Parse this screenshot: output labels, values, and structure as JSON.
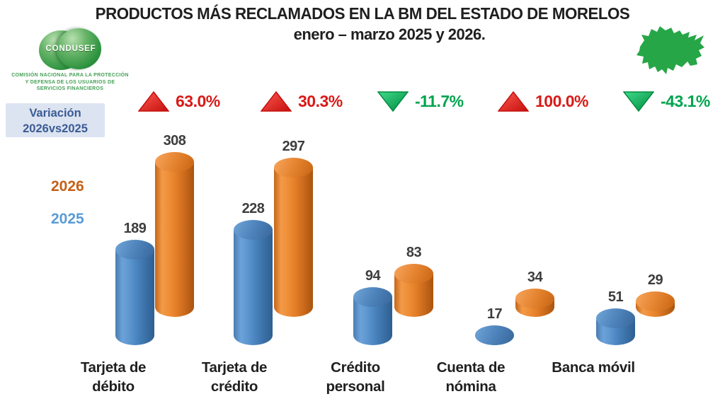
{
  "title": "PRODUCTOS MÁS RECLAMADOS EN LA BM DEL ESTADO DE MORELOS",
  "subtitle": "enero – marzo 2025 y 2026.",
  "logo": {
    "text": "CONDUSEF",
    "caption_line1": "COMISIÓN NACIONAL PARA LA PROTECCIÓN",
    "caption_line2": "Y DEFENSA DE LOS USUARIOS DE",
    "caption_line3": "SERVICIOS FINANCIEROS"
  },
  "map": {
    "region": "Morelos",
    "color": "#27a647"
  },
  "variation_box": {
    "line1": "Variación",
    "line2": "2026vs2025"
  },
  "legend": {
    "year_2026": {
      "label": "2026",
      "color": "#c55f15"
    },
    "year_2025": {
      "label": "2025",
      "color": "#5b9bd5"
    }
  },
  "chart_data": {
    "type": "bar",
    "style": "3d-cylinder",
    "title": "PRODUCTOS MÁS RECLAMADOS EN LA BM DEL ESTADO DE MORELOS",
    "subtitle": "enero – marzo 2025 y 2026.",
    "categories": [
      "Tarjeta de débito",
      "Tarjeta de crédito",
      "Crédito personal",
      "Cuenta de nómina",
      "Banca móvil"
    ],
    "category_lines": [
      [
        "Tarjeta de",
        "débito"
      ],
      [
        "Tarjeta de",
        "crédito"
      ],
      [
        "Crédito",
        "personal"
      ],
      [
        "Cuenta de",
        "nómina"
      ],
      [
        "Banca móvil"
      ]
    ],
    "series": [
      {
        "name": "2025",
        "color": "#4e86c0",
        "values": [
          189,
          228,
          94,
          17,
          51
        ]
      },
      {
        "name": "2026",
        "color": "#e07b28",
        "values": [
          308,
          297,
          83,
          34,
          29
        ]
      }
    ],
    "variations": [
      {
        "label": "63.0%",
        "direction": "up",
        "color": "#d81a18"
      },
      {
        "label": "30.3%",
        "direction": "up",
        "color": "#d81a18"
      },
      {
        "label": "-11.7%",
        "direction": "down",
        "color": "#00a44f"
      },
      {
        "label": "100.0%",
        "direction": "up",
        "color": "#d81a18"
      },
      {
        "label": "-43.1%",
        "direction": "down",
        "color": "#00a44f"
      }
    ],
    "variation_title": "Variación 2026vs2025",
    "xlabel": "",
    "ylabel": "",
    "grid": false,
    "legend_position": "left"
  }
}
